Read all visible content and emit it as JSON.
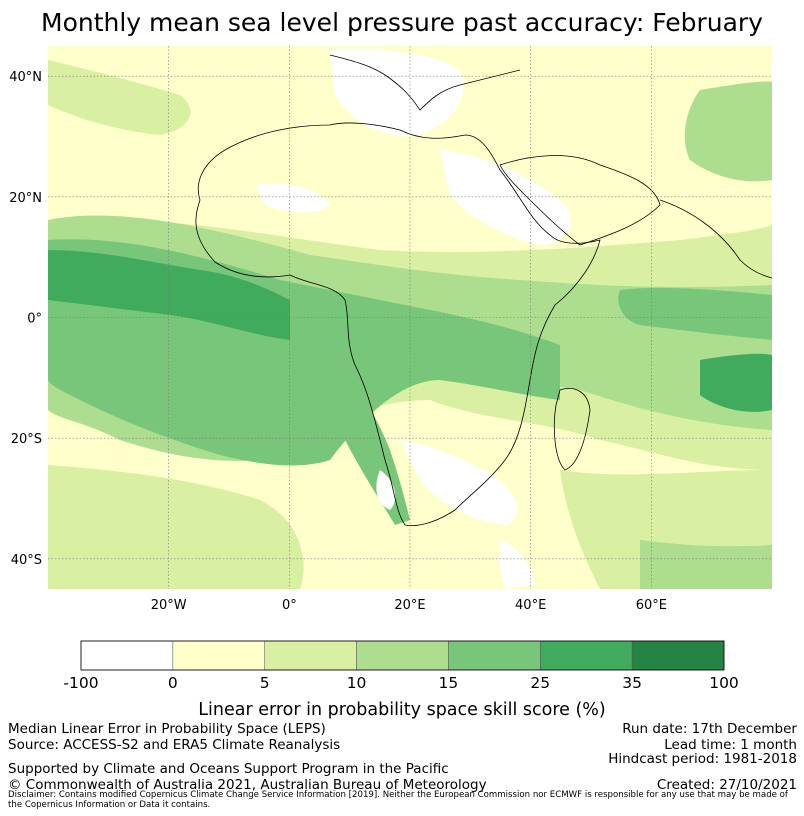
{
  "title": "Monthly mean sea level pressure past accuracy: February",
  "map": {
    "lat_ticks": [
      "40°N",
      "20°N",
      "0°",
      "20°S",
      "40°S"
    ],
    "lon_ticks": [
      "20°W",
      "0°",
      "20°E",
      "40°E",
      "60°E"
    ],
    "lat_values": [
      40,
      20,
      0,
      -20,
      -40
    ],
    "lon_values": [
      -20,
      0,
      20,
      40,
      60
    ],
    "extent": {
      "lon_min": -40,
      "lon_max": 80,
      "lat_min": -45,
      "lat_max": 45
    }
  },
  "colorbar": {
    "bounds": [
      "-100",
      "0",
      "5",
      "10",
      "15",
      "25",
      "35",
      "100"
    ],
    "colors": [
      "#ffffff",
      "#ffffcc",
      "#d9f0a3",
      "#addd8e",
      "#78c679",
      "#41ab5d",
      "#238443"
    ],
    "label": "Linear error in probability space skill score (%)"
  },
  "footer": {
    "left_line1": "Median Linear Error in Probability Space (LEPS)",
    "left_line2": "Source: ACCESS-S2 and ERA5 Climate Reanalysis",
    "left_line3": "Supported by Climate and Oceans Support Program in the Pacific",
    "left_line4": "© Commonwealth of Australia 2021, Australian Bureau of Meteorology",
    "run_date": "Run date: 17th December",
    "lead_time": "Lead time: 1 month",
    "hindcast": "Hindcast period: 1981-2018",
    "created": "Created: 27/10/2021",
    "disclaimer": "Disclaimer: Contains modified Copernicus Climate Change Service Information [2019]. Neither the European Commission nor ECMWF is responsible for any use that may be made of the Copernicus Information or Data it contains."
  }
}
